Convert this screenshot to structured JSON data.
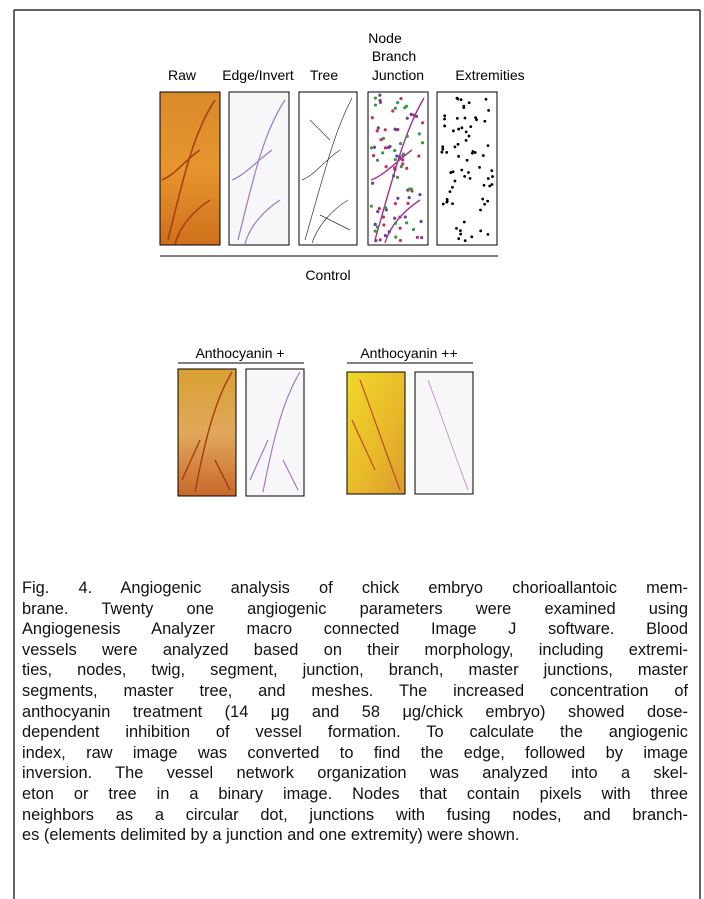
{
  "figure": {
    "panel_labels": {
      "raw": "Raw",
      "edge": "Edge/Invert",
      "tree": "Tree",
      "node": [
        "Node",
        "Branch",
        "Junction"
      ],
      "extremities": "Extremities"
    },
    "group_labels": {
      "control": "Control",
      "antho_plus": "Anthocyanin +",
      "antho_plusplus": "Anthocyanin ++"
    }
  },
  "caption": {
    "lines": [
      "Fig. 4. Angiogenic analysis of chick embryo chorioallantoic mem-",
      "brane. Twenty one angiogenic parameters were examined using",
      "Angiogenesis Analyzer macro connected Image J software. Blood",
      "vessels were analyzed based on their morphology, including extremi-",
      "ties, nodes, twig, segment, junction, branch, master junctions, master",
      "segments, master tree, and meshes. The increased concentration of",
      "anthocyanin treatment (14 μg and 58 μg/chick embryo) showed dose-",
      "dependent inhibition of vessel formation. To calculate the angiogenic",
      "index, raw image was converted to find the edge, followed by image",
      "inversion. The vessel network organization was analyzed into a skel-",
      "eton or tree in a binary image. Nodes that contain pixels with three",
      "neighbors as a circular dot, junctions with fusing nodes, and branch-",
      "es (elements delimited by a junction and one extremity) were shown."
    ]
  }
}
